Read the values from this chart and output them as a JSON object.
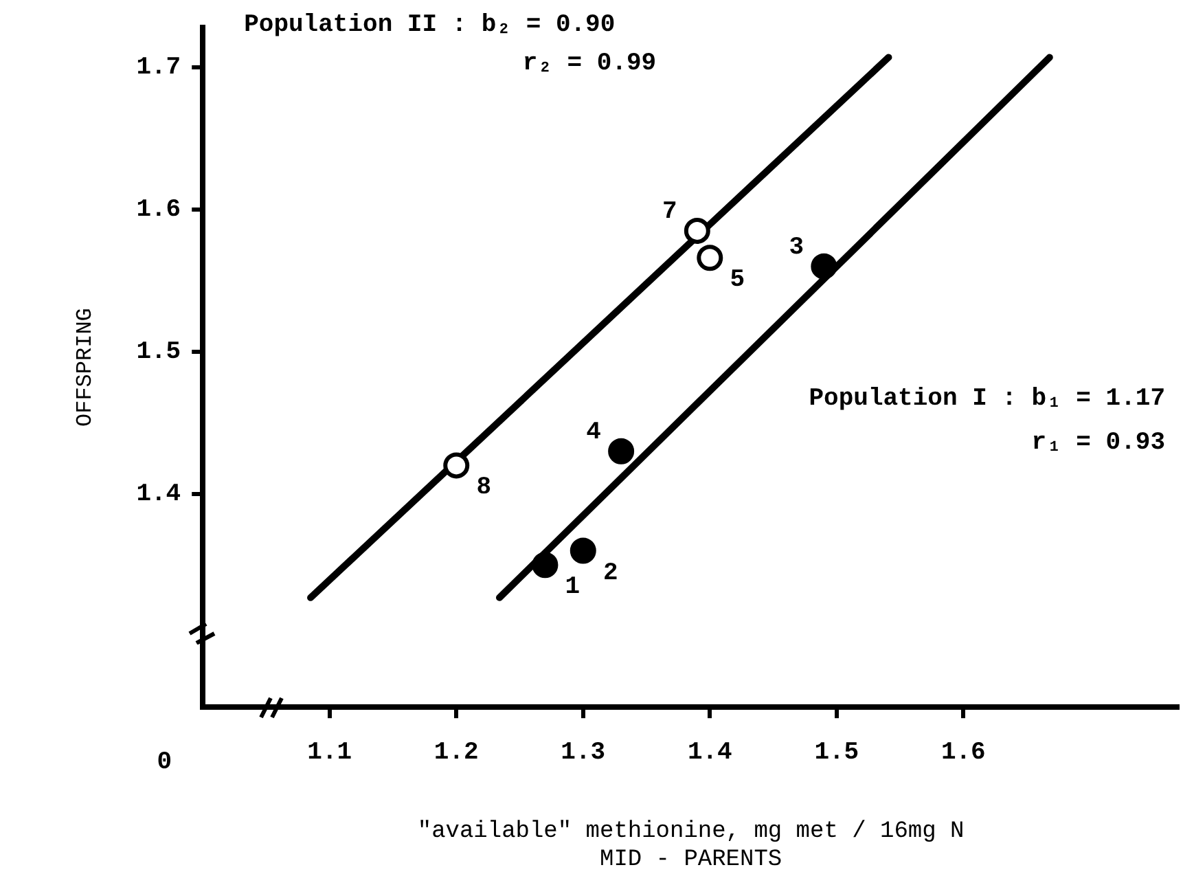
{
  "chart_data": {
    "type": "scatter",
    "xlabel": "\"available\" methionine, mg met / 16mg N\nMID - PARENTS",
    "ylabel": "OFFSPRING",
    "xlim": [
      1.0,
      1.77
    ],
    "ylim": [
      1.25,
      1.728
    ],
    "xticks": [
      1.1,
      1.2,
      1.3,
      1.4,
      1.5,
      1.6
    ],
    "yticks": [
      1.4,
      1.5,
      1.6,
      1.7
    ],
    "grid": false,
    "legend": false,
    "annotations": [
      "Population II : b₂ = 0.90",
      "r₂ = 0.99",
      "Population I : b₁ = 1.17",
      "r₁ = 0.93",
      "0",
      {
        "text": "1",
        "x": 1.27,
        "y": 1.35
      },
      {
        "text": "2",
        "x": 1.3,
        "y": 1.36
      },
      {
        "text": "4",
        "x": 1.33,
        "y": 1.43
      },
      {
        "text": "3",
        "x": 1.49,
        "y": 1.56
      },
      {
        "text": "8",
        "x": 1.2,
        "y": 1.42
      },
      {
        "text": "7",
        "x": 1.39,
        "y": 1.585
      },
      {
        "text": "5",
        "x": 1.4,
        "y": 1.566
      }
    ],
    "series": [
      {
        "type": "line",
        "color": "#000000",
        "marker": "none",
        "x": [
          1.234,
          1.668
        ],
        "values": [
          1.327,
          1.707
        ]
      },
      {
        "type": "line",
        "color": "#000000",
        "marker": "none",
        "x": [
          1.085,
          1.541
        ],
        "values": [
          1.327,
          1.707
        ]
      },
      {
        "color": "#000000",
        "marker": "circle",
        "x": [
          1.27,
          1.3,
          1.33,
          1.49
        ],
        "values": [
          1.35,
          1.36,
          1.43,
          1.56
        ]
      },
      {
        "color": "#000000",
        "marker": "circle",
        "x": [
          1.2,
          1.39,
          1.4
        ],
        "values": [
          1.42,
          1.585,
          1.566
        ]
      }
    ]
  }
}
